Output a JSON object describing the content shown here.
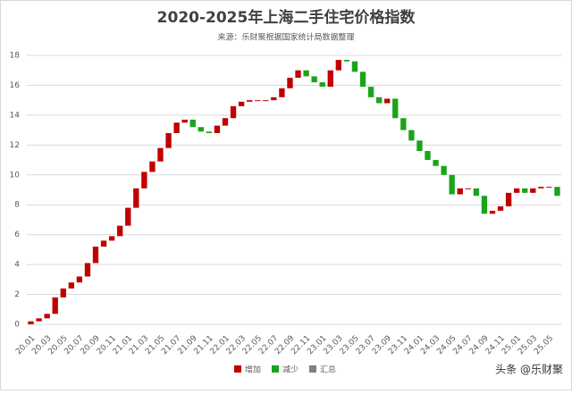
{
  "chart_data": {
    "type": "waterfall",
    "title": "2020-2025年上海二手住宅价格指数",
    "subtitle": "来源：乐财聚根据国家统计局数据整理",
    "watermark": "头条 @乐财聚",
    "categories": [
      "20.01",
      null,
      "20.03",
      null,
      "20.05",
      null,
      "20.07",
      null,
      "20.09",
      null,
      "20.11",
      null,
      "21.01",
      null,
      "21.03",
      null,
      "21.05",
      null,
      "21.07",
      null,
      "21.09",
      null,
      "21.11",
      null,
      "22.01",
      null,
      "22.03",
      null,
      "22.05",
      null,
      "22.07",
      null,
      "22.09",
      null,
      "22.11",
      null,
      "23.01",
      null,
      "23.03",
      null,
      "23.05",
      null,
      "23.07",
      null,
      "23.09",
      null,
      "23.11",
      null,
      "24.01",
      null,
      "24.03",
      null,
      "24.05",
      null,
      "24.07",
      null,
      "24.09",
      null,
      "24.11",
      null,
      "25.01",
      null,
      "25.03",
      null,
      "25.05",
      null
    ],
    "values": [
      0.2,
      0.2,
      0.3,
      1.1,
      0.6,
      0.4,
      0.4,
      0.9,
      1.1,
      0.4,
      0.3,
      0.7,
      1.2,
      1.3,
      1.1,
      0.7,
      0.9,
      1.0,
      0.7,
      0.2,
      -0.5,
      -0.3,
      -0.1,
      0.5,
      0.5,
      0.8,
      0.3,
      0.1,
      0,
      0,
      0.2,
      0.6,
      0.7,
      0.5,
      -0.4,
      -0.4,
      -0.3,
      1.1,
      0.7,
      -0.1,
      -0.7,
      -1.0,
      -0.7,
      -0.4,
      0.3,
      -1.3,
      -0.8,
      -0.7,
      -0.7,
      -0.6,
      -0.4,
      -0.6,
      -1.3,
      0.4,
      0,
      -0.5,
      -1.2,
      0.2,
      0.3,
      0.9,
      0.3,
      -0.3,
      0.3,
      0.1,
      0,
      -0.6
    ],
    "legend": [
      {
        "name": "增加",
        "color": "#c00000"
      },
      {
        "name": "减少",
        "color": "#19a519"
      },
      {
        "name": "汇总",
        "color": "#808080"
      }
    ],
    "ylim": [
      0,
      18
    ],
    "yticks": [
      0,
      2,
      4,
      6,
      8,
      10,
      12,
      14,
      16,
      18
    ],
    "grid": true
  }
}
